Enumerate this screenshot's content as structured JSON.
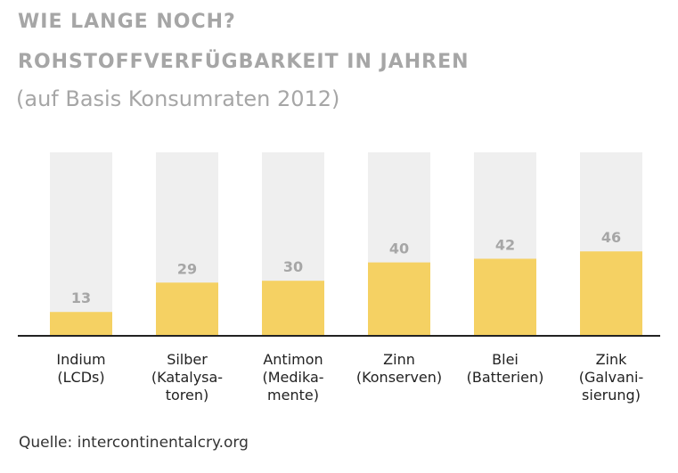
{
  "header": {
    "title_line1": "WIE LANGE NOCH?",
    "title_line2": "ROHSTOFFVERFÜGBARKEIT IN JAHREN",
    "subtitle": "(auf Basis Konsumraten 2012)"
  },
  "source": "Quelle: intercontinentalcry.org",
  "colors": {
    "bar": "#f5d163",
    "bar_background": "#efefef",
    "value_label": "#a6a6a6",
    "axis": "#222222",
    "category_text": "#222222"
  },
  "chart_data": {
    "type": "bar",
    "title": "WIE LANGE NOCH? ROHSTOFFVERFÜGBARKEIT IN JAHREN",
    "subtitle": "(auf Basis Konsumraten 2012)",
    "xlabel": "",
    "ylabel": "",
    "categories": [
      [
        "Indium",
        "(LCDs)"
      ],
      [
        "Silber",
        "(Katalysa-",
        "toren)"
      ],
      [
        "Antimon",
        "(Medika-",
        "mente)"
      ],
      [
        "Zinn",
        "(Konserven)"
      ],
      [
        "Blei",
        "(Batterien)"
      ],
      [
        "Zink",
        "(Galvani-",
        "sierung)"
      ]
    ],
    "values": [
      13,
      29,
      30,
      40,
      42,
      46
    ],
    "data_labels": [
      "13",
      "29",
      "30",
      "40",
      "42",
      "46"
    ],
    "ylim": [
      0,
      100
    ],
    "grid": false,
    "legend": "none"
  }
}
